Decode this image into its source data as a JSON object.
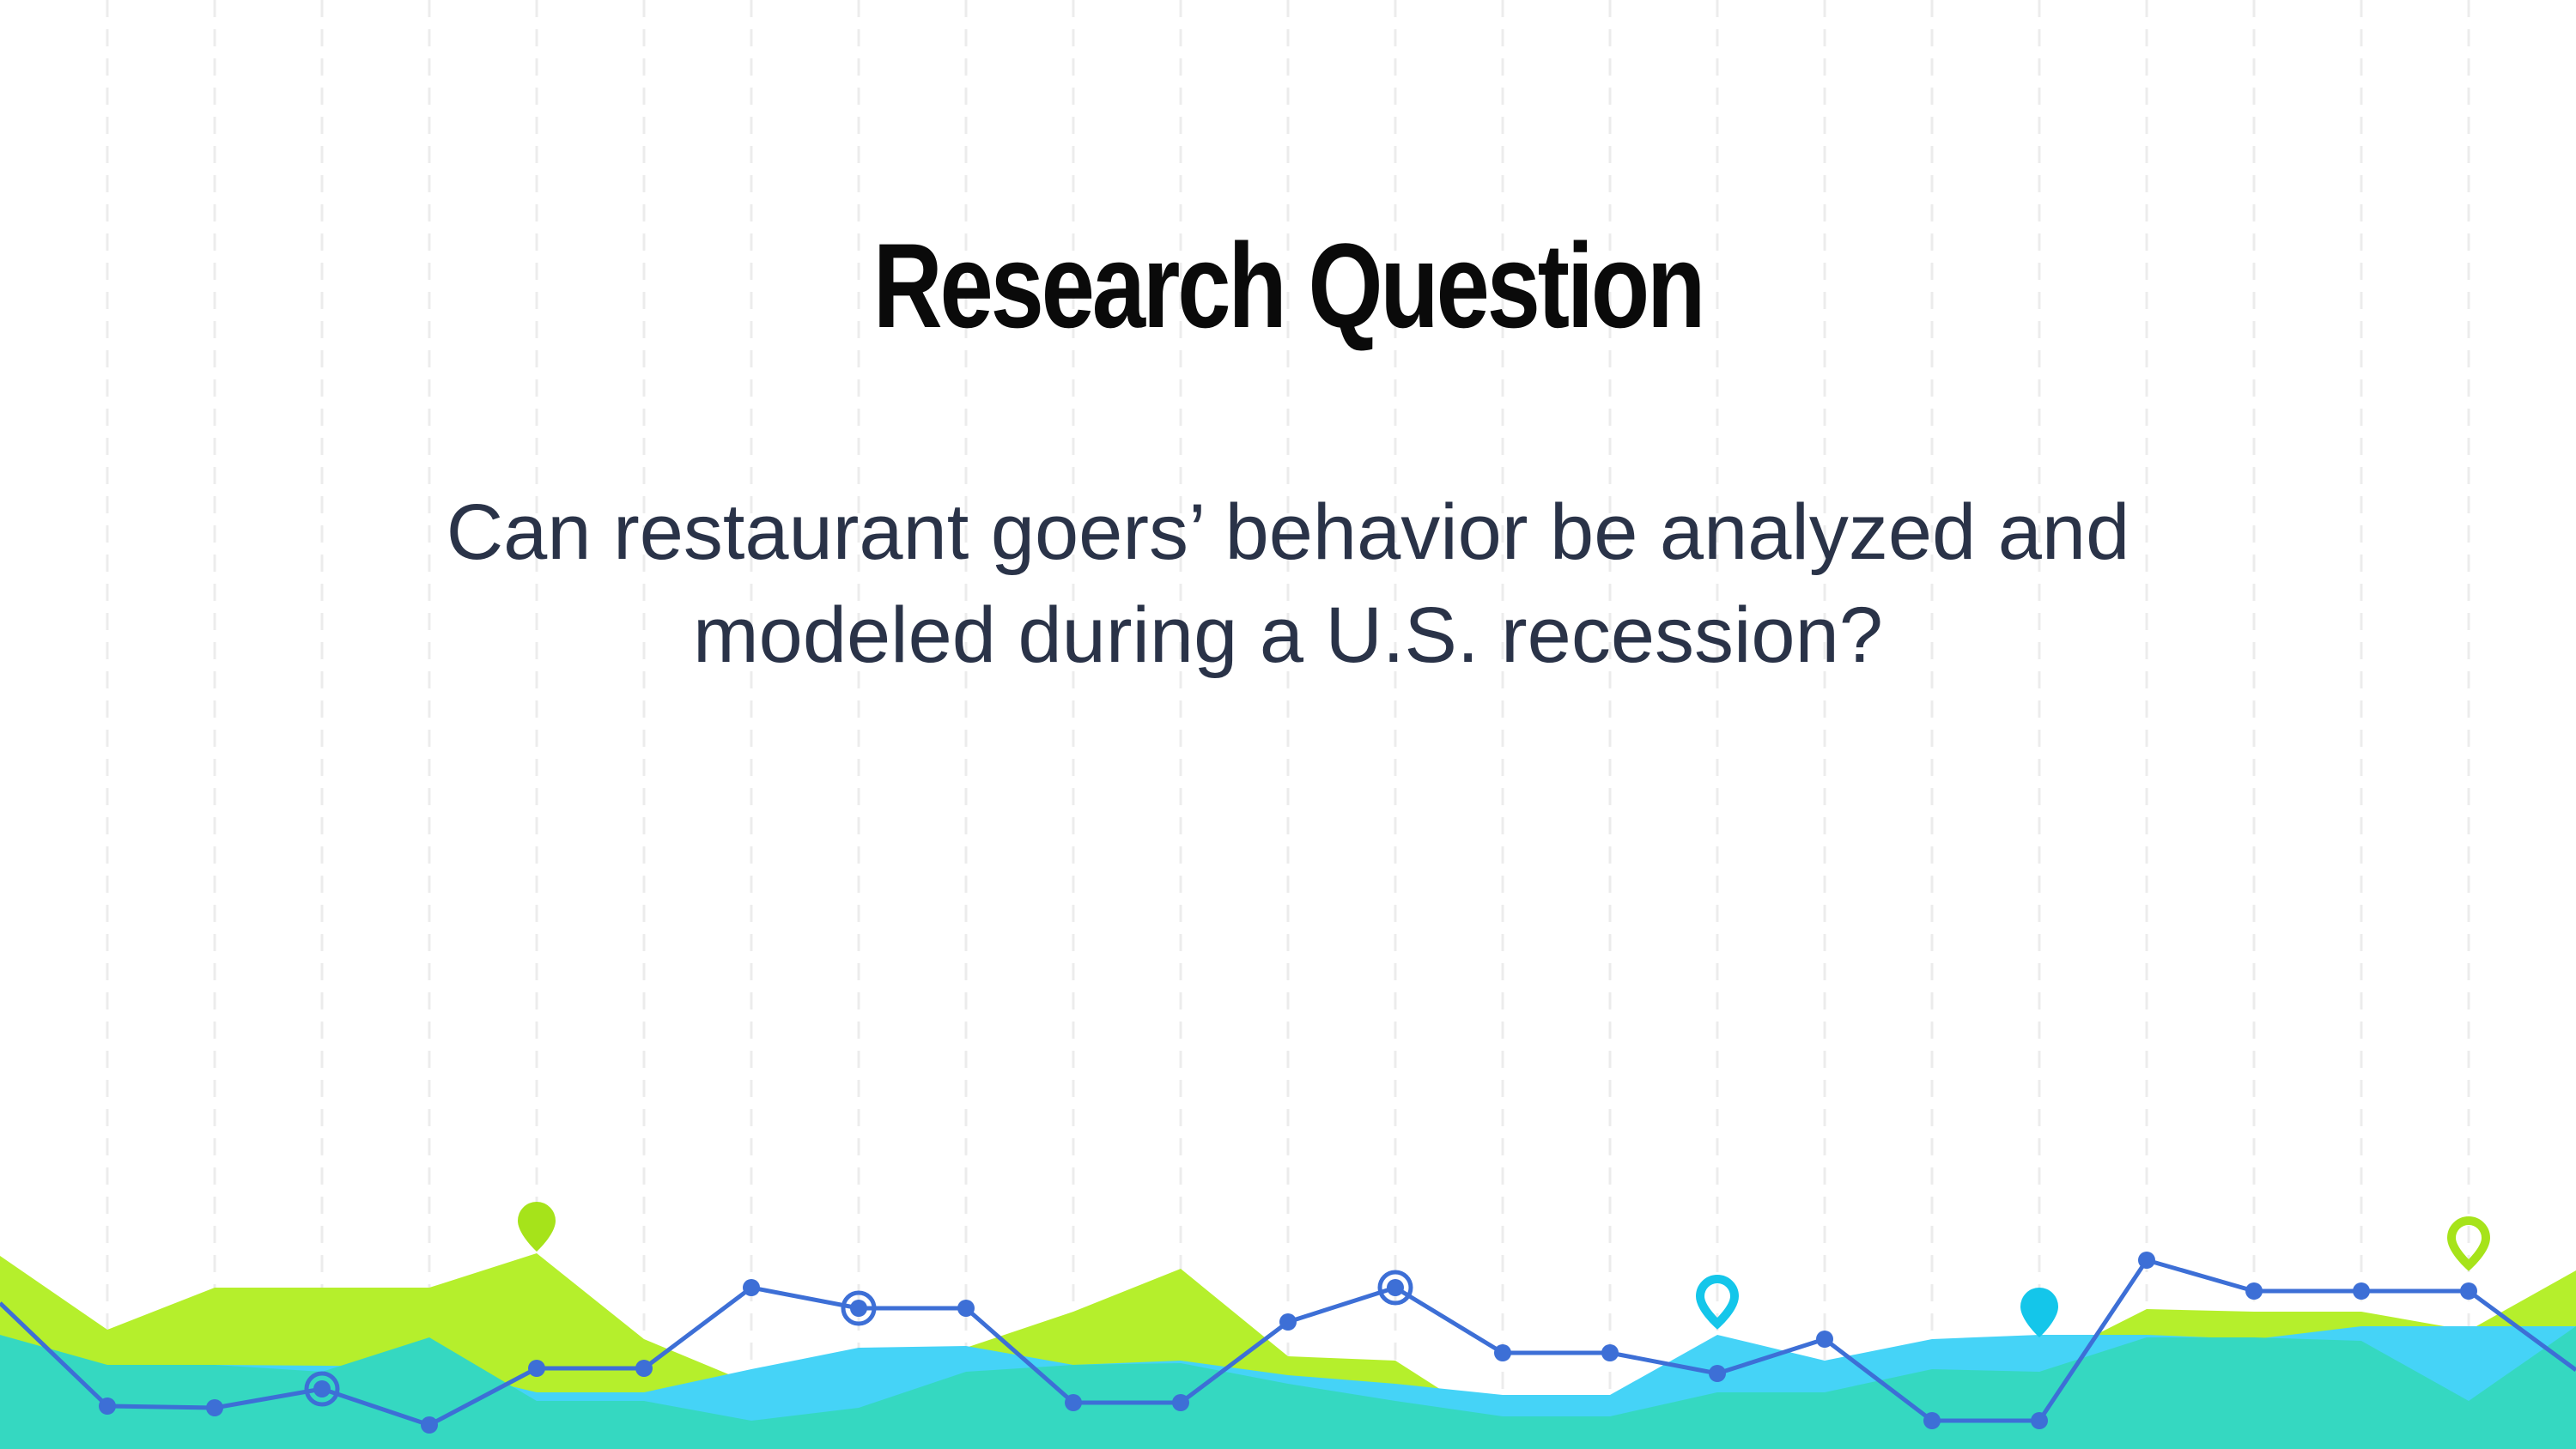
{
  "slide": {
    "title": "Research Question",
    "body": "Can restaurant goers’ behavior be analyzed and modeled during a U.S. recession?"
  },
  "colors": {
    "background": "#ffffff",
    "title": "#0a0a0a",
    "body": "#2a3348",
    "grid": "#ececec",
    "lime": "#b5ef2c",
    "teal": "#35d8c1",
    "sky": "#45d3f7",
    "line": "#3d6fd6"
  },
  "icons": [
    "map-pin-icon",
    "target-icon"
  ]
}
